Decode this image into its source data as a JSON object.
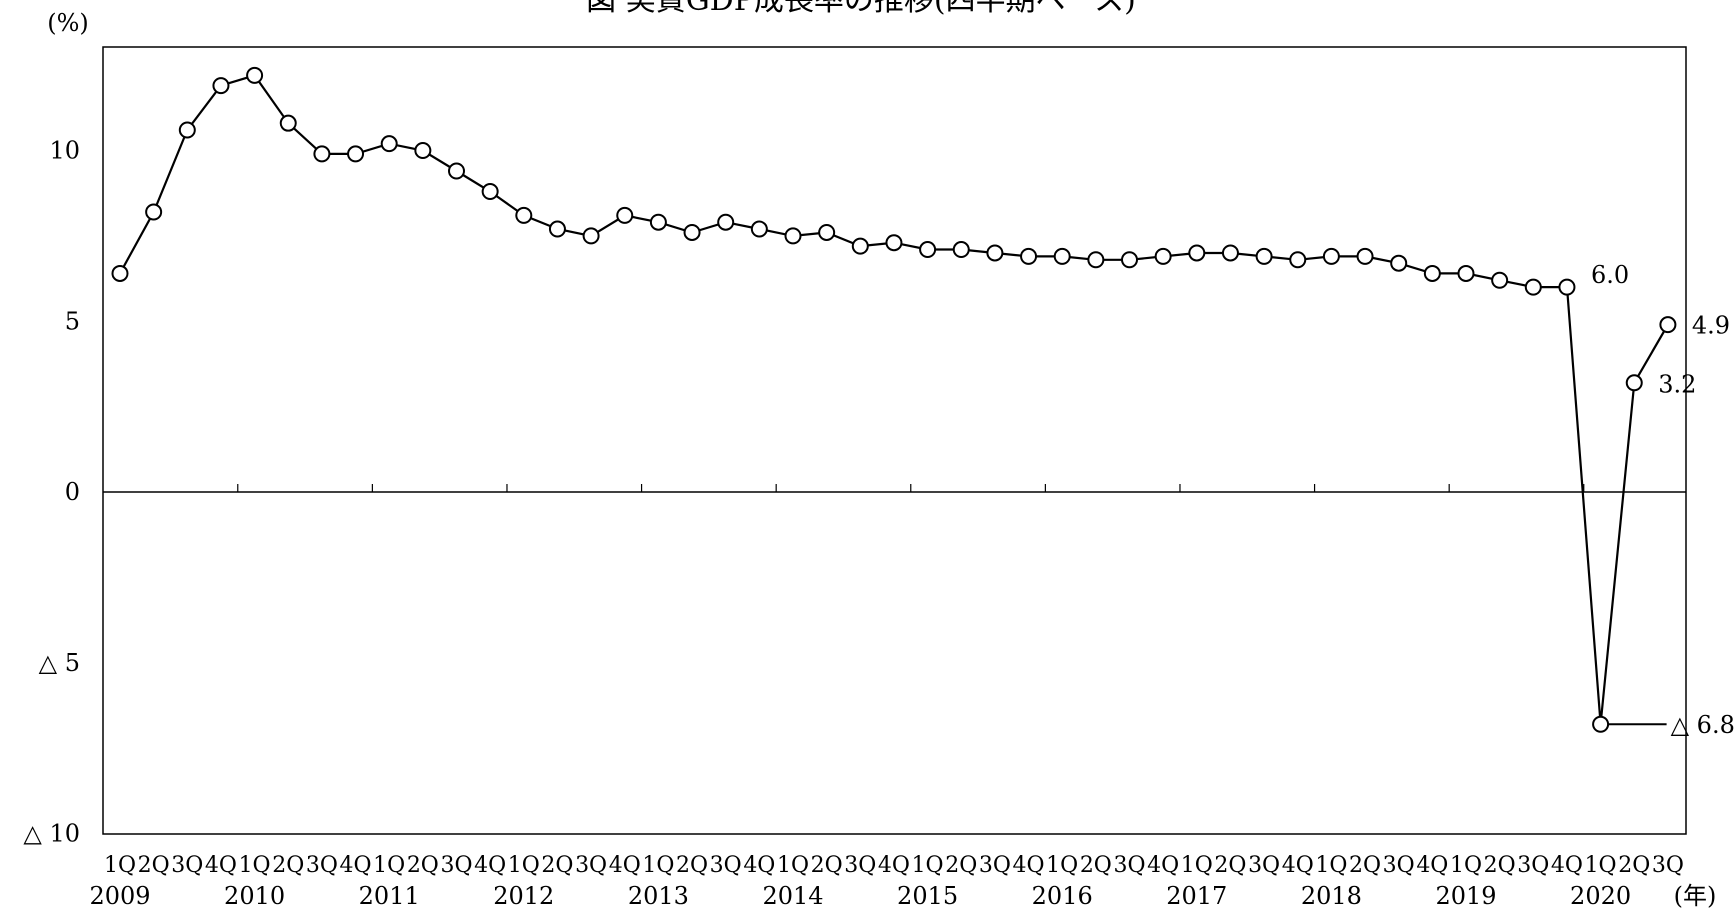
{
  "chart_data": {
    "type": "line",
    "title": "図 実質GDP成長率の推移(四半期ベース)",
    "ylabel": "(%)",
    "xlabel": "(年)",
    "ylim": [
      -10,
      13
    ],
    "yticks": [
      {
        "value": 10,
        "label": "10"
      },
      {
        "value": 5,
        "label": "5"
      },
      {
        "value": 0,
        "label": "0"
      },
      {
        "value": -5,
        "label": "△ 5"
      },
      {
        "value": -10,
        "label": "△ 10"
      }
    ],
    "quarter_labels": [
      "1Q",
      "2Q",
      "3Q",
      "4Q"
    ],
    "years": [
      "2009",
      "2010",
      "2011",
      "2012",
      "2013",
      "2014",
      "2015",
      "2016",
      "2017",
      "2018",
      "2019",
      "2020"
    ],
    "values": [
      6.4,
      8.2,
      10.6,
      11.9,
      12.2,
      10.8,
      9.9,
      9.9,
      10.2,
      10.0,
      9.4,
      8.8,
      8.1,
      7.7,
      7.5,
      8.1,
      7.9,
      7.6,
      7.9,
      7.7,
      7.5,
      7.6,
      7.2,
      7.3,
      7.1,
      7.1,
      7.0,
      6.9,
      6.9,
      6.8,
      6.8,
      6.9,
      7.0,
      7.0,
      6.9,
      6.8,
      6.9,
      6.9,
      6.7,
      6.4,
      6.4,
      6.2,
      6.0,
      6.0,
      -6.8,
      3.2,
      4.9
    ],
    "annotations": [
      {
        "index": 43,
        "label": "6.0"
      },
      {
        "index": 44,
        "label": "△ 6.8"
      },
      {
        "index": 45,
        "label": "3.2"
      },
      {
        "index": 46,
        "label": "4.9"
      }
    ],
    "grid": false,
    "legend": "none"
  }
}
